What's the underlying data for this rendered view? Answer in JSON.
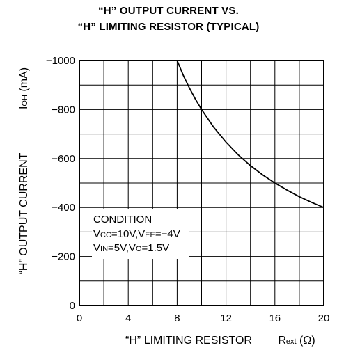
{
  "chart_data": {
    "type": "line",
    "title_lines": [
      "“H” OUTPUT CURRENT VS.",
      "“H” LIMITING RESISTOR (TYPICAL)"
    ],
    "xlabel": "“H” LIMITING RESISTOR",
    "xunit": "Rext (Ω)",
    "ylabel": "“H” OUTPUT CURRENT",
    "yunit": "IOH (mA)",
    "xlim": [
      0,
      20
    ],
    "ylim": [
      0,
      -1000
    ],
    "x_ticks": [
      "0",
      "4",
      "8",
      "12",
      "16",
      "20"
    ],
    "y_ticks": [
      "0",
      "−200",
      "−400",
      "−600",
      "−800",
      "−1000"
    ],
    "grid": true,
    "series": [
      {
        "x": [
          8,
          8.5,
          9,
          9.5,
          10,
          11,
          12,
          13,
          14,
          15,
          16,
          17,
          18,
          19,
          20
        ],
        "y": [
          -1000,
          -940,
          -888,
          -842,
          -800,
          -727,
          -667,
          -615,
          -571,
          -533,
          -500,
          -471,
          -444,
          -421,
          -400
        ]
      }
    ],
    "annotation": {
      "heading": "CONDITION",
      "line1": "VCC=10V,VEE=−4V",
      "line2": "VIN=5V,VO=1.5V"
    },
    "line_color": "#000000"
  }
}
